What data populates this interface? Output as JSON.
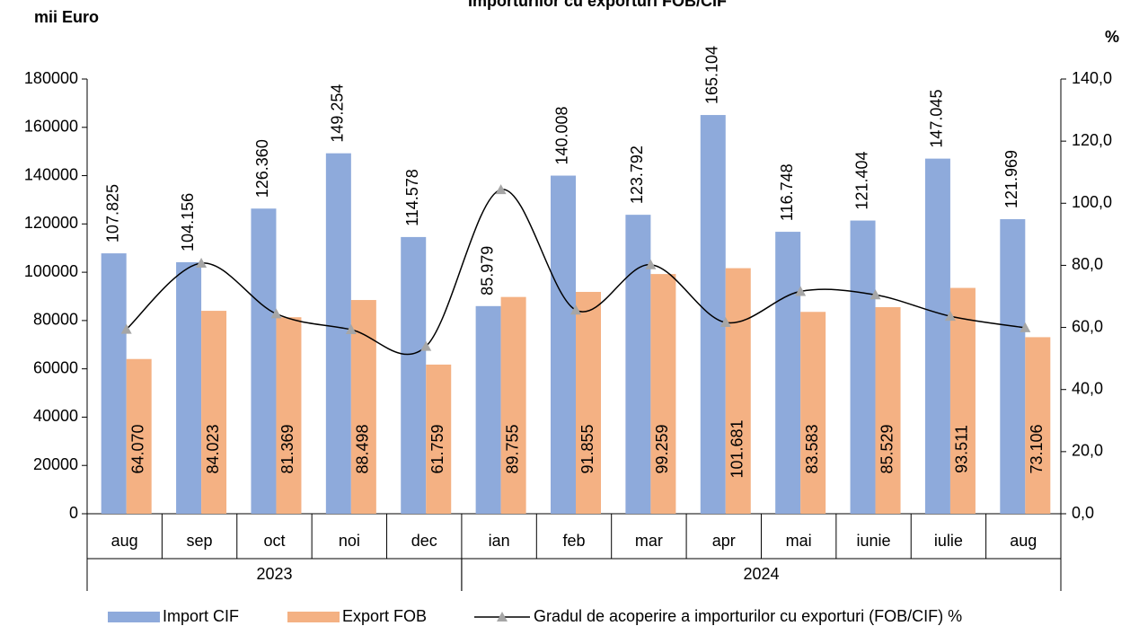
{
  "chart_data": {
    "type": "bar",
    "title": "Importurilor cu exporturi FOB/CIF",
    "y_label": "mii Euro",
    "y2_label": "%",
    "categories": [
      "aug",
      "sep",
      "oct",
      "noi",
      "dec",
      "ian",
      "feb",
      "mar",
      "apr",
      "mai",
      "iunie",
      "iulie",
      "aug"
    ],
    "x_groups": [
      {
        "label": "2023",
        "span": 5
      },
      {
        "label": "2024",
        "span": 8
      }
    ],
    "series": [
      {
        "name": "Import CIF",
        "color": "#8eaadb",
        "type": "bar",
        "values": [
          107825,
          104156,
          126360,
          149254,
          114578,
          85979,
          140008,
          123792,
          165104,
          116748,
          121404,
          147045,
          121969
        ],
        "value_labels": [
          "107.825",
          "104.156",
          "126.360",
          "149.254",
          "114.578",
          "85.979",
          "140.008",
          "123.792",
          "165.104",
          "116.748",
          "121.404",
          "147.045",
          "121.969"
        ]
      },
      {
        "name": "Export FOB",
        "color": "#f4b183",
        "type": "bar",
        "values": [
          64070,
          84023,
          81369,
          88498,
          61759,
          89755,
          91855,
          99259,
          101681,
          83583,
          85529,
          93511,
          73106
        ],
        "value_labels": [
          "64.070",
          "84.023",
          "81.369",
          "88.498",
          "61.759",
          "89.755",
          "91.855",
          "99.259",
          "101.681",
          "83.583",
          "85.529",
          "93.511",
          "73.106"
        ]
      },
      {
        "name": "Gradul de acoperire a importurilor cu exporturi (FOB/CIF) %",
        "color": "#000000",
        "marker_color": "#a6a6a6",
        "type": "line",
        "axis": "y2",
        "values": [
          59.4,
          80.7,
          64.4,
          59.3,
          53.9,
          104.4,
          65.6,
          80.2,
          61.6,
          71.6,
          70.5,
          63.6,
          59.9
        ]
      }
    ],
    "ylim": [
      0,
      180000
    ],
    "yticks": [
      0,
      20000,
      40000,
      60000,
      80000,
      100000,
      120000,
      140000,
      160000,
      180000
    ],
    "y2lim": [
      0,
      140
    ],
    "y2ticks": [
      {
        "value": 0,
        "label": "0,0"
      },
      {
        "value": 20,
        "label": "20,0"
      },
      {
        "value": 40,
        "label": "40,0"
      },
      {
        "value": 60,
        "label": "60,0"
      },
      {
        "value": 80,
        "label": "80,0"
      },
      {
        "value": 100,
        "label": "100,0"
      },
      {
        "value": 120,
        "label": "120,0"
      },
      {
        "value": 140,
        "label": "140,0"
      }
    ],
    "legend": "bottom"
  }
}
